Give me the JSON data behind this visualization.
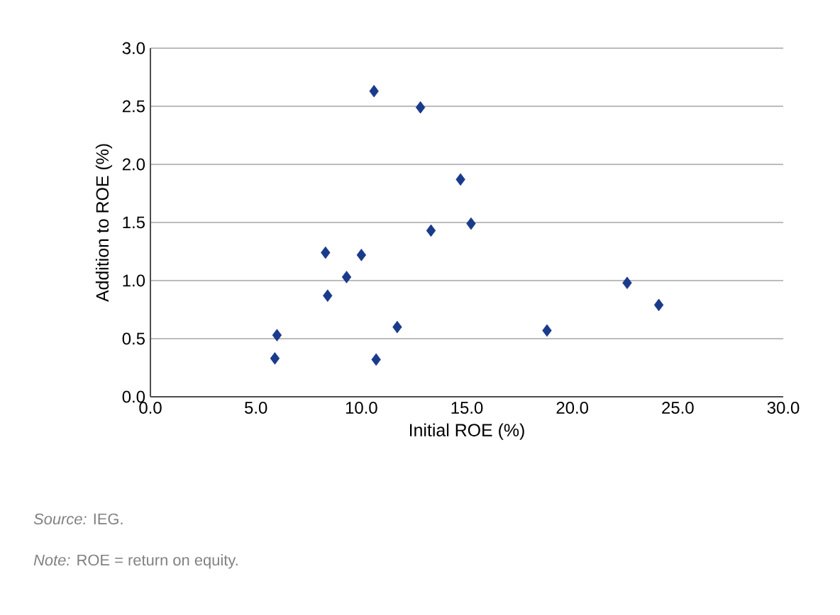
{
  "chart_data": {
    "type": "scatter",
    "xlabel": "Initial ROE (%)",
    "ylabel": "Addition to ROE (%)",
    "x": [
      10.6,
      12.8,
      14.7,
      15.2,
      13.3,
      8.3,
      10.0,
      9.3,
      8.4,
      22.6,
      24.1,
      18.8,
      11.7,
      6.0,
      5.9,
      10.7
    ],
    "values": [
      2.63,
      2.49,
      1.87,
      1.49,
      1.43,
      1.24,
      1.22,
      1.03,
      0.87,
      0.98,
      0.79,
      0.57,
      0.6,
      0.53,
      0.33,
      0.32
    ],
    "color": "#1a3a8a",
    "marker": "diamond",
    "grid": "y",
    "xlim": [
      0,
      30
    ],
    "ylim": [
      0,
      3
    ],
    "xticks": [
      {
        "value": 0,
        "label": "0.0"
      },
      {
        "value": 5,
        "label": "5.0"
      },
      {
        "value": 10,
        "label": "10.0"
      },
      {
        "value": 15,
        "label": "15.0"
      },
      {
        "value": 20,
        "label": "20.0"
      },
      {
        "value": 25,
        "label": "25.0"
      },
      {
        "value": 30,
        "label": "30.0"
      }
    ],
    "yticks": [
      {
        "value": 0,
        "label": "0.0"
      },
      {
        "value": 0.5,
        "label": "0.5"
      },
      {
        "value": 1,
        "label": "1.0"
      },
      {
        "value": 1.5,
        "label": "1.5"
      },
      {
        "value": 2,
        "label": "2.0"
      },
      {
        "value": 2.5,
        "label": "2.5"
      },
      {
        "value": 3,
        "label": "3.0"
      }
    ],
    "annotations": [
      "*Source:* IEG.",
      "*Note:* ROE = return on equity."
    ]
  }
}
